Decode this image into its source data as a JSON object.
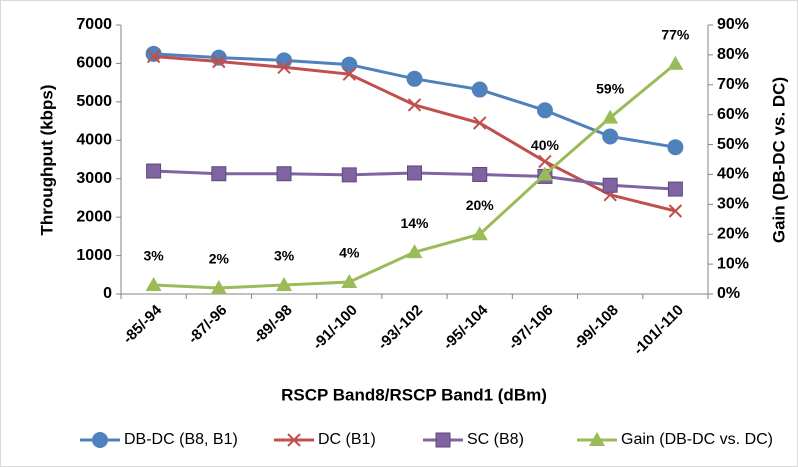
{
  "chart_data": {
    "type": "line",
    "x_label": "RSCP Band8/RSCP Band1 (dBm)",
    "y_label": "Throughput (kbps)",
    "y2_label": "Gain (DB-DC vs. DC)",
    "categories": [
      "-85/-94",
      "-87/-96",
      "-89/-98",
      "-91/-100",
      "-93/-102",
      "-95/-104",
      "-97/-106",
      "-99/-108",
      "-101/-110"
    ],
    "series": [
      {
        "name": "DB-DC (B8, B1)",
        "color": "#4f81bd",
        "marker": "circle",
        "values": [
          6250,
          6150,
          6080,
          5970,
          5600,
          5320,
          4780,
          4100,
          3820
        ]
      },
      {
        "name": "DC (B1)",
        "color": "#c0504d",
        "marker": "x",
        "values": [
          6180,
          6050,
          5900,
          5720,
          4920,
          4450,
          3450,
          2580,
          2160
        ]
      },
      {
        "name": "SC (B8)",
        "color": "#8064a2",
        "marker": "square",
        "values": [
          3200,
          3130,
          3130,
          3100,
          3150,
          3110,
          3060,
          2830,
          2730
        ]
      },
      {
        "name": "Gain (DB-DC vs. DC)",
        "color": "#9bbb59",
        "marker": "triangle",
        "axis": "y2",
        "values": [
          3,
          2,
          3,
          4,
          14,
          20,
          40,
          59,
          77
        ],
        "value_labels": [
          "3%",
          "2%",
          "3%",
          "4%",
          "14%",
          "20%",
          "40%",
          "59%",
          "77%"
        ]
      }
    ],
    "ylim": [
      0,
      7000
    ],
    "yticks": [
      0,
      1000,
      2000,
      3000,
      4000,
      5000,
      6000,
      7000
    ],
    "y2lim": [
      0,
      90
    ],
    "y2ticks": [
      {
        "value": 0,
        "label": "0%"
      },
      {
        "value": 10,
        "label": "10%"
      },
      {
        "value": 20,
        "label": "20%"
      },
      {
        "value": 30,
        "label": "30%"
      },
      {
        "value": 40,
        "label": "40%"
      },
      {
        "value": 50,
        "label": "50%"
      },
      {
        "value": 60,
        "label": "60%"
      },
      {
        "value": 70,
        "label": "70%"
      },
      {
        "value": 80,
        "label": "80%"
      },
      {
        "value": 90,
        "label": "90%"
      }
    ],
    "grid": false,
    "legend": "bottom"
  }
}
